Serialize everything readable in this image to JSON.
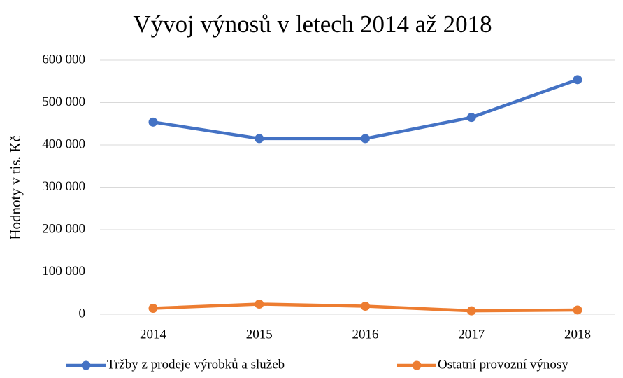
{
  "chart_data": {
    "type": "line",
    "title": "Vývoj výnosů v letech 2014 až 2018",
    "y_label": "Hodnoty v tis. Kč",
    "categories": [
      "2014",
      "2015",
      "2016",
      "2017",
      "2018"
    ],
    "series": [
      {
        "name": "Tržby z prodeje výrobků a služeb",
        "color": "#4472c4",
        "values": [
          454000,
          415000,
          415000,
          465000,
          554000
        ]
      },
      {
        "name": "Ostatní provozní výnosy",
        "color": "#ed7d31",
        "values": [
          14000,
          24000,
          19000,
          8000,
          10000
        ]
      }
    ],
    "ylim": [
      0,
      600000
    ],
    "yticks": [
      0,
      {
        "value": 100000,
        "label": "100 000"
      },
      {
        "value": 200000,
        "label": "200 000"
      },
      {
        "value": 300000,
        "label": "300 000"
      },
      {
        "value": 400000,
        "label": "400 000"
      },
      {
        "value": 500000,
        "label": "500 000"
      },
      {
        "value": 600000,
        "label": "600 000"
      }
    ],
    "grid": true,
    "legend": "bottom"
  }
}
